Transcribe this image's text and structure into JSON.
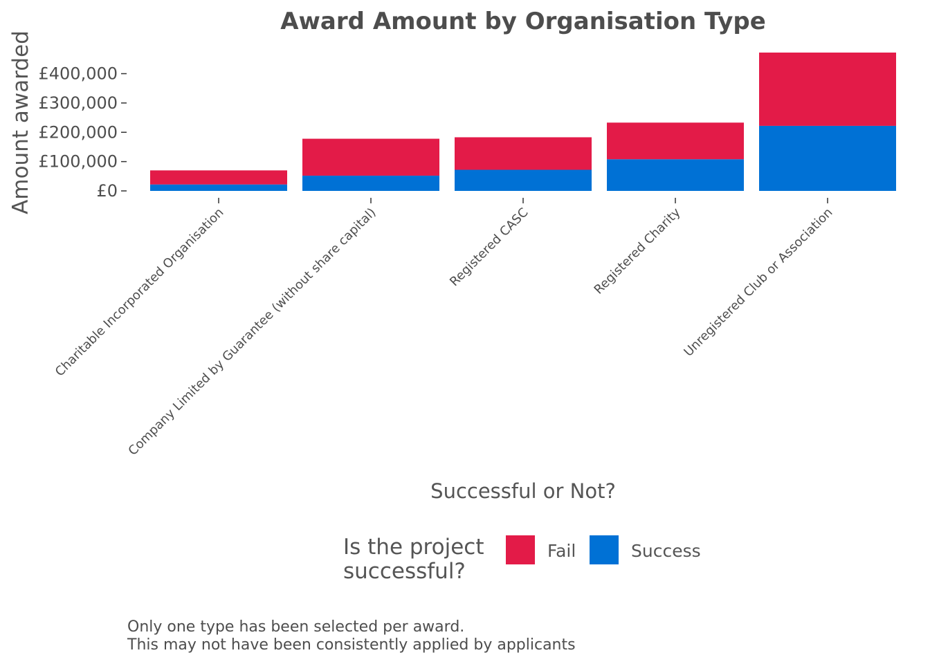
{
  "chart_data": {
    "type": "bar",
    "stacked": true,
    "title": "Award Amount by Organisation Type",
    "xlabel": "Successful or Not?",
    "ylabel": "Amount awarded",
    "categories": [
      "Charitable Incorporated Organisation",
      "Company Limited by Guarantee (without share capital)",
      "Registered CASC",
      "Registered Charity",
      "Unregistered Club or Association"
    ],
    "series": [
      {
        "name": "Success",
        "color": "#0071d5",
        "values": [
          22000,
          52000,
          72000,
          108000,
          222000
        ]
      },
      {
        "name": "Fail",
        "color": "#e31b48",
        "values": [
          48000,
          126000,
          111000,
          125000,
          250000
        ]
      }
    ],
    "ylim": [
      0,
      472000
    ],
    "yticks": [
      0,
      100000,
      200000,
      300000,
      400000
    ],
    "ytick_labels": [
      "£0",
      "£100,000",
      "£200,000",
      "£300,000",
      "£400,000"
    ],
    "grid": false,
    "legend": {
      "title": "Is the project successful?",
      "title_lines": [
        "Is the project",
        "successful?"
      ],
      "placement": "bottom",
      "items": [
        {
          "label": "Fail",
          "color": "#e31b48"
        },
        {
          "label": "Success",
          "color": "#0071d5"
        }
      ]
    },
    "caption_lines": [
      "Only one type has been selected per award.",
      "This may not have been consistently applied by applicants"
    ]
  }
}
